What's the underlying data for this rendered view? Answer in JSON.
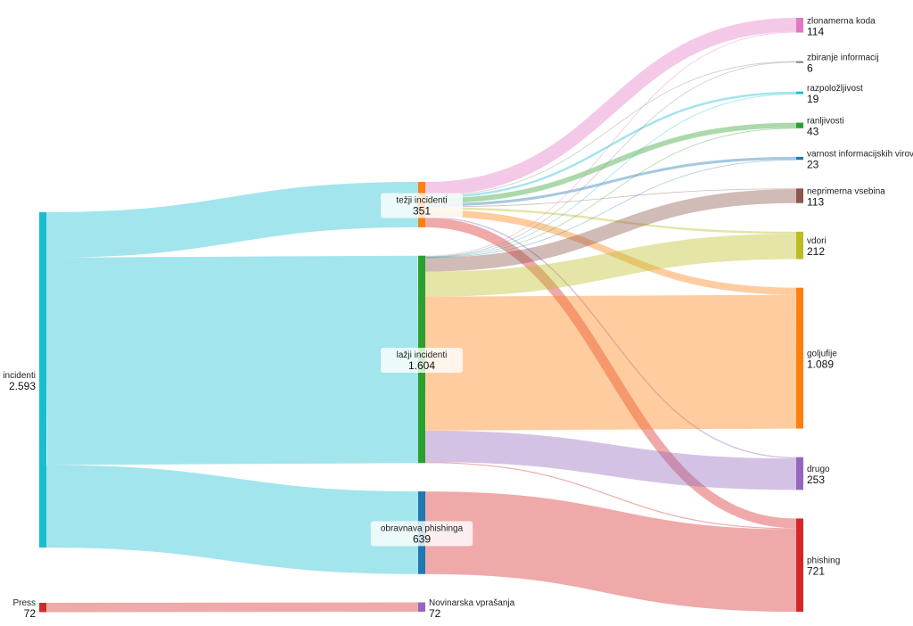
{
  "chart_data": {
    "type": "sankey",
    "nodes": [
      {
        "id": "incidenti",
        "label": "incidenti",
        "value_label": "2.593",
        "value": 2593,
        "color": "#17becf",
        "column": 0
      },
      {
        "id": "press",
        "label": "Press",
        "value_label": "72",
        "value": 72,
        "color": "#d62728",
        "column": 0
      },
      {
        "id": "tezji",
        "label": "težji incidenti",
        "value_label": "351",
        "value": 351,
        "color": "#ff7f0e",
        "column": 1
      },
      {
        "id": "lazni",
        "label": "lažji incidenti",
        "value_label": "1.604",
        "value": 1604,
        "color": "#2ca02c",
        "column": 1
      },
      {
        "id": "phishobr",
        "label": "obravnava phishinga",
        "value_label": "639",
        "value": 639,
        "color": "#1f77b4",
        "column": 1
      },
      {
        "id": "novinarska",
        "label": "Novinarska vprašanja",
        "value_label": "72",
        "value": 72,
        "color": "#9467bd",
        "column": 1
      },
      {
        "id": "zlonamerna",
        "label": "zlonamerna koda",
        "value_label": "114",
        "value": 114,
        "color": "#e377c2",
        "column": 2
      },
      {
        "id": "zbiranje",
        "label": "zbiranje informacij",
        "value_label": "6",
        "value": 6,
        "color": "#7f7f7f",
        "column": 2
      },
      {
        "id": "razpolozljivost",
        "label": "razpoložljivost",
        "value_label": "19",
        "value": 19,
        "color": "#17becf",
        "column": 2
      },
      {
        "id": "ranljivosti",
        "label": "ranljivosti",
        "value_label": "43",
        "value": 43,
        "color": "#2ca02c",
        "column": 2
      },
      {
        "id": "varnost",
        "label": "varnost informacijskih virov",
        "value_label": "23",
        "value": 23,
        "color": "#1f77b4",
        "column": 2
      },
      {
        "id": "neprimerna",
        "label": "neprimerna vsebina",
        "value_label": "113",
        "value": 113,
        "color": "#8c564b",
        "column": 2
      },
      {
        "id": "vdori",
        "label": "vdori",
        "value_label": "212",
        "value": 212,
        "color": "#bcbd22",
        "column": 2
      },
      {
        "id": "goljufije",
        "label": "goljufije",
        "value_label": "1.089",
        "value": 1089,
        "color": "#ff7f0e",
        "column": 2
      },
      {
        "id": "drugo",
        "label": "drugo",
        "value_label": "253",
        "value": 253,
        "color": "#9467bd",
        "column": 2
      },
      {
        "id": "phishing",
        "label": "phishing",
        "value_label": "721",
        "value": 721,
        "color": "#d62728",
        "column": 2
      }
    ],
    "links": [
      {
        "source": "incidenti",
        "target": "tezji",
        "value": 351
      },
      {
        "source": "incidenti",
        "target": "lazni",
        "value": 1604
      },
      {
        "source": "incidenti",
        "target": "phishobr",
        "value": 639
      },
      {
        "source": "press",
        "target": "novinarska",
        "value": 72
      },
      {
        "source": "tezji",
        "target": "zlonamerna",
        "value": 108
      },
      {
        "source": "tezji",
        "target": "zbiranje",
        "value": 4
      },
      {
        "source": "tezji",
        "target": "razpolozljivost",
        "value": 17
      },
      {
        "source": "tezji",
        "target": "ranljivosti",
        "value": 40
      },
      {
        "source": "tezji",
        "target": "varnost",
        "value": 21
      },
      {
        "source": "tezji",
        "target": "neprimerna",
        "value": 5
      },
      {
        "source": "tezji",
        "target": "vdori",
        "value": 17
      },
      {
        "source": "tezji",
        "target": "goljufije",
        "value": 54
      },
      {
        "source": "tezji",
        "target": "drugo",
        "value": 10
      },
      {
        "source": "tezji",
        "target": "phishing",
        "value": 75
      },
      {
        "source": "lazni",
        "target": "zlonamerna",
        "value": 6
      },
      {
        "source": "lazni",
        "target": "zbiranje",
        "value": 2
      },
      {
        "source": "lazni",
        "target": "razpolozljivost",
        "value": 2
      },
      {
        "source": "lazni",
        "target": "ranljivosti",
        "value": 3
      },
      {
        "source": "lazni",
        "target": "varnost",
        "value": 2
      },
      {
        "source": "lazni",
        "target": "neprimerna",
        "value": 108
      },
      {
        "source": "lazni",
        "target": "vdori",
        "value": 195
      },
      {
        "source": "lazni",
        "target": "goljufije",
        "value": 1035
      },
      {
        "source": "lazni",
        "target": "drugo",
        "value": 243
      },
      {
        "source": "lazni",
        "target": "phishing",
        "value": 8
      },
      {
        "source": "phishobr",
        "target": "phishing",
        "value": 639
      }
    ]
  }
}
